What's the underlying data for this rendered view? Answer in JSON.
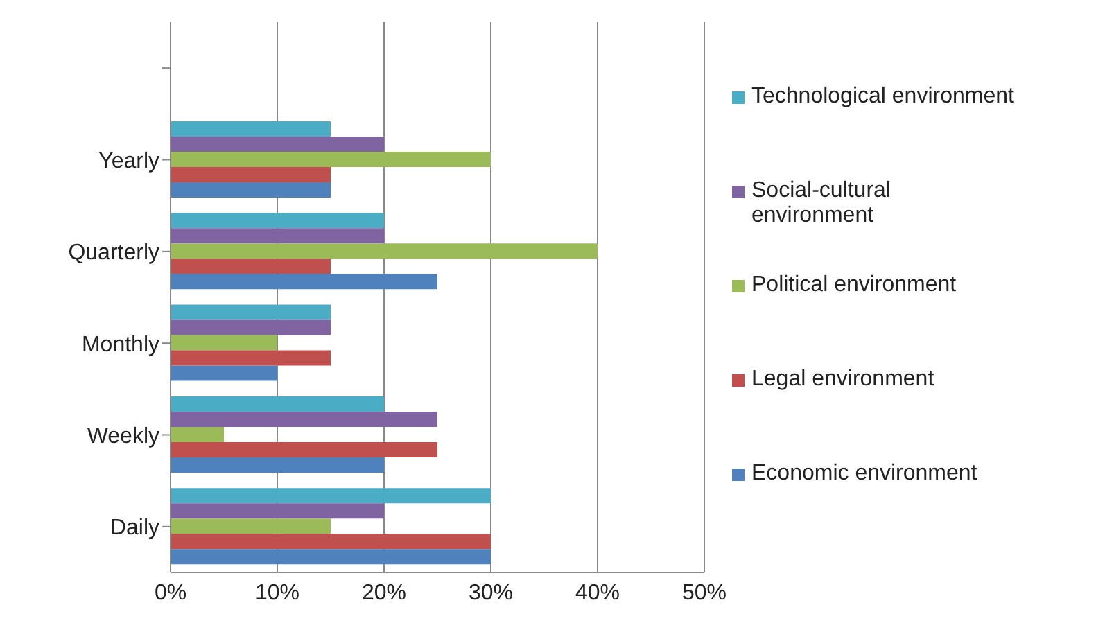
{
  "chart_data": {
    "type": "bar",
    "orientation": "horizontal",
    "categories": [
      null,
      "Yearly",
      "Quarterly",
      "Monthly",
      "Weekly",
      "Daily"
    ],
    "series": [
      {
        "name": "Technological environment",
        "color": "#4bacc6",
        "values": [
          null,
          15,
          20,
          15,
          20,
          30
        ]
      },
      {
        "name": "Social-cultural environment",
        "color": "#8064a2",
        "values": [
          null,
          20,
          20,
          15,
          25,
          20
        ]
      },
      {
        "name": "Political environment",
        "color": "#9bbb59",
        "values": [
          null,
          30,
          40,
          10,
          5,
          15
        ]
      },
      {
        "name": "Legal environment",
        "color": "#c0504d",
        "values": [
          null,
          15,
          15,
          15,
          25,
          30
        ]
      },
      {
        "name": "Economic environment",
        "color": "#4f81bd",
        "values": [
          null,
          15,
          25,
          10,
          20,
          30
        ]
      }
    ],
    "xlim": [
      0,
      50
    ],
    "xticks": [
      {
        "value": 0,
        "label": "0%"
      },
      {
        "value": 10,
        "label": "10%"
      },
      {
        "value": 20,
        "label": "20%"
      },
      {
        "value": 30,
        "label": "30%"
      },
      {
        "value": 40,
        "label": "40%"
      },
      {
        "value": 50,
        "label": "50%"
      }
    ],
    "grid": "x",
    "legend": "right"
  }
}
